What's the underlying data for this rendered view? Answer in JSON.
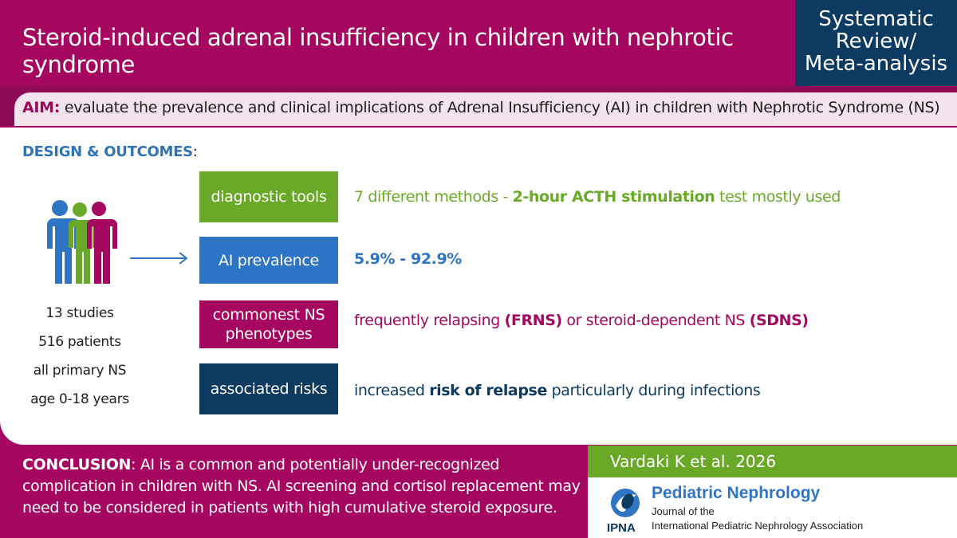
{
  "header": {
    "title": "Steroid-induced adrenal insufficiency in children with nephrotic syndrome",
    "badge_lines": [
      "Systematic",
      "Review/",
      "Meta-analysis"
    ]
  },
  "aim": {
    "label": "AIM:",
    "text": " evaluate the prevalence and clinical implications of Adrenal Insufficiency (AI) in children with Nephrotic Syndrome (NS)"
  },
  "design": {
    "heading": "DESIGN & OUTCOMES",
    "colon": ":"
  },
  "stats": [
    "13 studies",
    "516 patients",
    "all primary NS",
    "age 0-18 years"
  ],
  "outcomes": [
    {
      "label": "diagnostic tools",
      "parts": [
        "7 different methods - ",
        "2-hour ACTH stimulation",
        " test mostly used"
      ]
    },
    {
      "label": "AI prevalence",
      "parts": [
        "5.9% - 92.9%"
      ]
    },
    {
      "label_lines": [
        "commonest NS",
        "phenotypes"
      ],
      "parts": [
        "frequently relapsing ",
        "(FRNS)",
        " or steroid-dependent NS ",
        "(SDNS)"
      ]
    },
    {
      "label": "associated risks",
      "parts": [
        "increased ",
        "risk of relapse",
        " particularly during infections"
      ]
    }
  ],
  "conclusion": {
    "label": "CONCLUSION",
    "text": ": AI is a common and potentially under-recognized complication in children with NS. AI screening and cortisol replacement may need to be considered in patients with high cumulative steroid exposure."
  },
  "citation": "Vardaki K et al. 2026",
  "journal": {
    "title": "Pediatric Nephrology",
    "line1": "Journal of the",
    "line2": "International Pediatric Nephrology Association",
    "logo_text": "IPNA"
  },
  "colors": {
    "magenta": "#a5065f",
    "navy": "#0d3a60",
    "green": "#6aa928",
    "blue": "#2e75c6"
  },
  "icons": [
    "people-group-icon",
    "arrow-right-icon",
    "ipna-logo-icon"
  ]
}
